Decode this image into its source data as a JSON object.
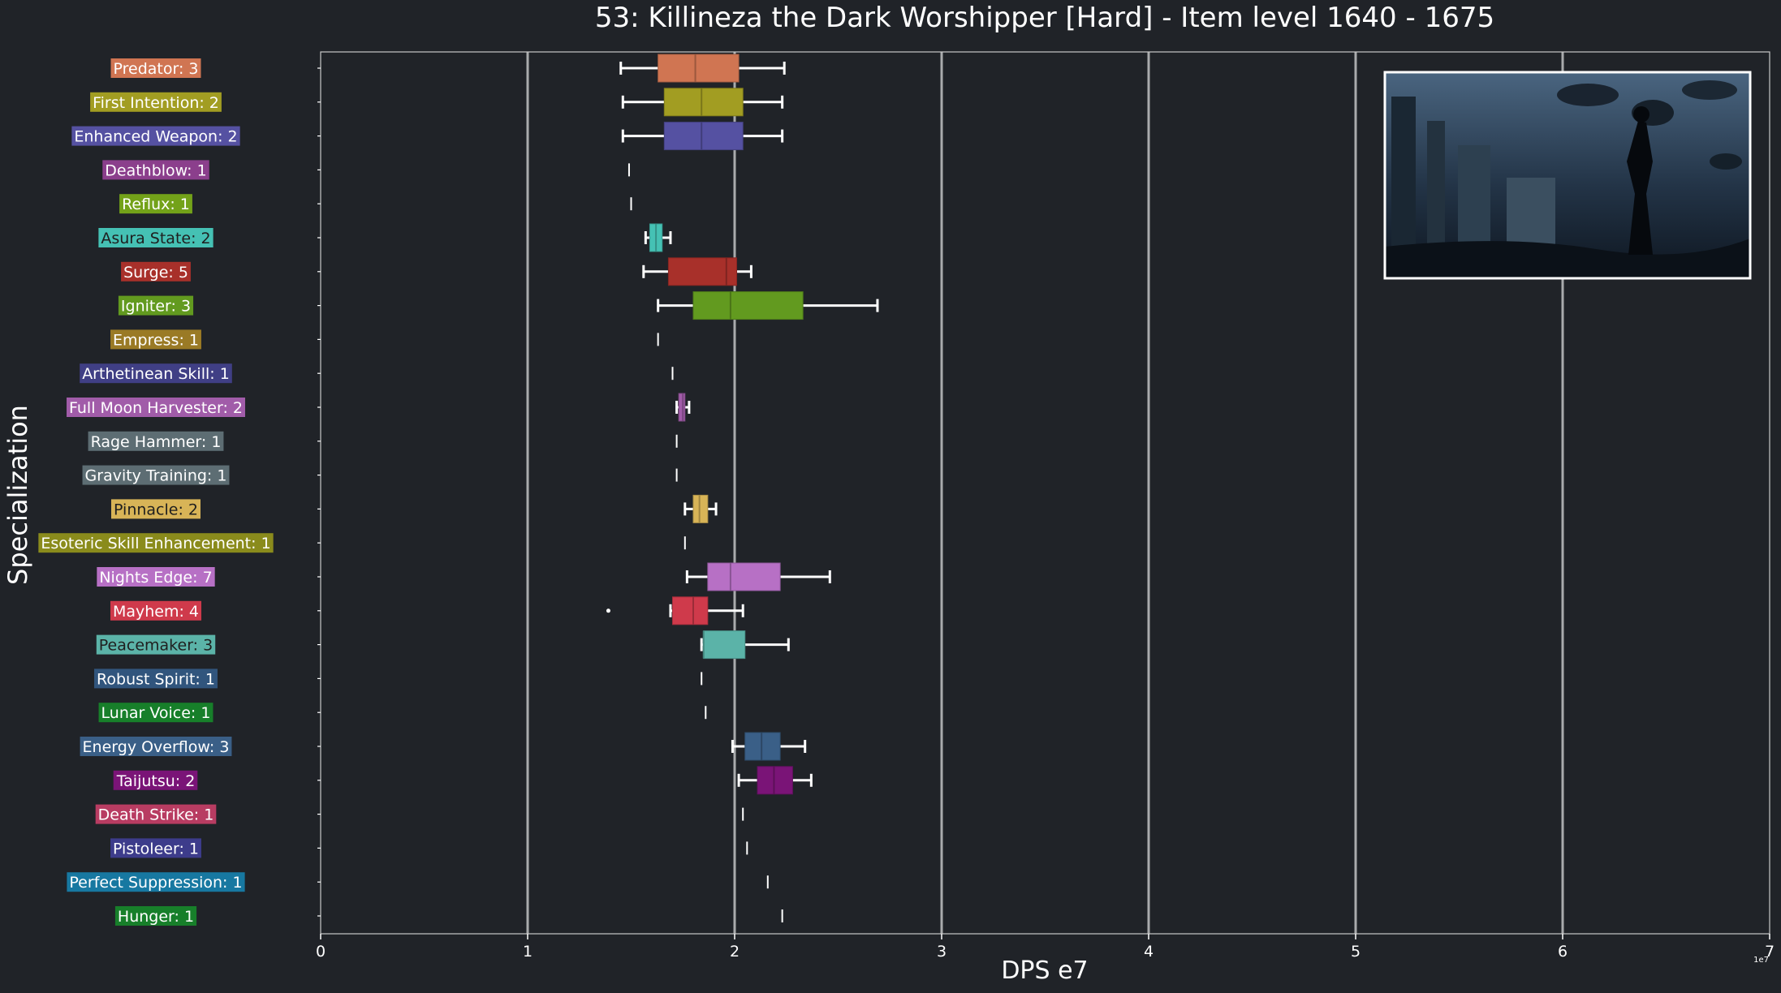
{
  "chart_data": {
    "type": "box",
    "title": "53: Killineza the Dark Worshipper [Hard] - Item level 1640 - 1675",
    "xlabel": "DPS e7",
    "ylabel": "Specialization",
    "x_offset_label": "1e7",
    "xlim": [
      0,
      7
    ],
    "xticks": [
      "0",
      "1",
      "2",
      "3",
      "4",
      "5",
      "6",
      "7"
    ],
    "grid": "vertical",
    "inset_image": "boss-thumbnail",
    "categories": [
      {
        "label": "Predator: 3",
        "color": "#d07552",
        "whisker_low": 1.45,
        "q1": 1.63,
        "median": 1.81,
        "q3": 2.02,
        "whisker_high": 2.24,
        "outliers": []
      },
      {
        "label": "First Intention: 2",
        "color": "#a29d22",
        "whisker_low": 1.46,
        "q1": 1.66,
        "median": 1.84,
        "q3": 2.04,
        "whisker_high": 2.23,
        "outliers": []
      },
      {
        "label": "Enhanced Weapon: 2",
        "color": "#5551a2",
        "whisker_low": 1.46,
        "q1": 1.66,
        "median": 1.84,
        "q3": 2.04,
        "whisker_high": 2.23,
        "outliers": []
      },
      {
        "label": "Deathblow: 1",
        "color": "#8b3f8c",
        "whisker_low": 1.49,
        "q1": 1.49,
        "median": 1.49,
        "q3": 1.49,
        "whisker_high": 1.49,
        "outliers": []
      },
      {
        "label": "Reflux: 1",
        "color": "#73a219",
        "whisker_low": 1.5,
        "q1": 1.5,
        "median": 1.5,
        "q3": 1.5,
        "whisker_high": 1.5,
        "outliers": []
      },
      {
        "label": "Asura State: 2",
        "color": "#45c1b4",
        "whisker_low": 1.57,
        "q1": 1.59,
        "median": 1.62,
        "q3": 1.65,
        "whisker_high": 1.69,
        "outliers": []
      },
      {
        "label": "Surge: 5",
        "color": "#a8302a",
        "whisker_low": 1.56,
        "q1": 1.68,
        "median": 1.96,
        "q3": 2.01,
        "whisker_high": 2.08,
        "outliers": []
      },
      {
        "label": "Igniter: 3",
        "color": "#629a1f",
        "whisker_low": 1.63,
        "q1": 1.8,
        "median": 1.98,
        "q3": 2.33,
        "whisker_high": 2.69,
        "outliers": []
      },
      {
        "label": "Empress: 1",
        "color": "#9a7a25",
        "whisker_low": 1.63,
        "q1": 1.63,
        "median": 1.63,
        "q3": 1.63,
        "whisker_high": 1.63,
        "outliers": []
      },
      {
        "label": "Arthetinean Skill: 1",
        "color": "#403f85",
        "whisker_low": 1.7,
        "q1": 1.7,
        "median": 1.7,
        "q3": 1.7,
        "whisker_high": 1.7,
        "outliers": []
      },
      {
        "label": "Full Moon Harvester: 2",
        "color": "#a15ca9",
        "whisker_low": 1.72,
        "q1": 1.73,
        "median": 1.75,
        "q3": 1.76,
        "whisker_high": 1.78,
        "outliers": []
      },
      {
        "label": "Rage Hammer: 1",
        "color": "#5d6d73",
        "whisker_low": 1.72,
        "q1": 1.72,
        "median": 1.72,
        "q3": 1.72,
        "whisker_high": 1.72,
        "outliers": []
      },
      {
        "label": "Gravity Training: 1",
        "color": "#5d6d73",
        "whisker_low": 1.72,
        "q1": 1.72,
        "median": 1.72,
        "q3": 1.72,
        "whisker_high": 1.72,
        "outliers": []
      },
      {
        "label": "Pinnacle: 2",
        "color": "#d8b457",
        "whisker_low": 1.76,
        "q1": 1.8,
        "median": 1.83,
        "q3": 1.87,
        "whisker_high": 1.91,
        "outliers": []
      },
      {
        "label": "Esoteric Skill Enhancement: 1",
        "color": "#8a8b1c",
        "whisker_low": 1.76,
        "q1": 1.76,
        "median": 1.76,
        "q3": 1.76,
        "whisker_high": 1.76,
        "outliers": []
      },
      {
        "label": "Nights Edge: 7",
        "color": "#b770c5",
        "whisker_low": 1.77,
        "q1": 1.87,
        "median": 1.98,
        "q3": 2.22,
        "whisker_high": 2.46,
        "outliers": []
      },
      {
        "label": "Mayhem: 4",
        "color": "#cf3a4b",
        "whisker_low": 1.69,
        "q1": 1.7,
        "median": 1.8,
        "q3": 1.87,
        "whisker_high": 2.04,
        "outliers": [
          1.39
        ]
      },
      {
        "label": "Peacemaker: 3",
        "color": "#5bb3a8",
        "whisker_low": 1.84,
        "q1": 1.85,
        "median": 1.85,
        "q3": 2.05,
        "whisker_high": 2.26,
        "outliers": []
      },
      {
        "label": "Robust Spirit: 1",
        "color": "#31557d",
        "whisker_low": 1.84,
        "q1": 1.84,
        "median": 1.84,
        "q3": 1.84,
        "whisker_high": 1.84,
        "outliers": []
      },
      {
        "label": "Lunar Voice: 1",
        "color": "#177f2a",
        "whisker_low": 1.86,
        "q1": 1.86,
        "median": 1.86,
        "q3": 1.86,
        "whisker_high": 1.86,
        "outliers": []
      },
      {
        "label": "Energy Overflow: 3",
        "color": "#3a5f87",
        "whisker_low": 1.99,
        "q1": 2.05,
        "median": 2.13,
        "q3": 2.22,
        "whisker_high": 2.34,
        "outliers": []
      },
      {
        "label": "Taijutsu: 2",
        "color": "#7a1477",
        "whisker_low": 2.02,
        "q1": 2.11,
        "median": 2.19,
        "q3": 2.28,
        "whisker_high": 2.37,
        "outliers": []
      },
      {
        "label": "Death Strike: 1",
        "color": "#b83c62",
        "whisker_low": 2.04,
        "q1": 2.04,
        "median": 2.04,
        "q3": 2.04,
        "whisker_high": 2.04,
        "outliers": []
      },
      {
        "label": "Pistoleer: 1",
        "color": "#3d3c8b",
        "whisker_low": 2.06,
        "q1": 2.06,
        "median": 2.06,
        "q3": 2.06,
        "whisker_high": 2.06,
        "outliers": []
      },
      {
        "label": "Perfect Suppression: 1",
        "color": "#1778a1",
        "whisker_low": 2.16,
        "q1": 2.16,
        "median": 2.16,
        "q3": 2.16,
        "whisker_high": 2.16,
        "outliers": []
      },
      {
        "label": "Hunger: 1",
        "color": "#177f2a",
        "whisker_low": 2.23,
        "q1": 2.23,
        "median": 2.23,
        "q3": 2.23,
        "whisker_high": 2.23,
        "outliers": []
      }
    ]
  }
}
